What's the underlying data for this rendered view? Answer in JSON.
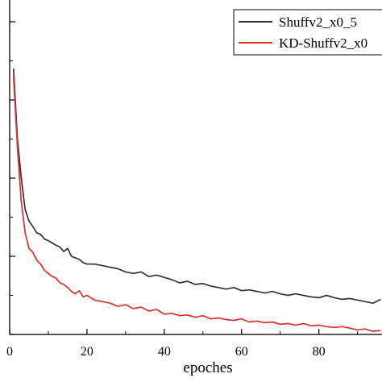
{
  "chart_data": {
    "type": "line",
    "xlabel": "epoches",
    "ylabel": "",
    "xlim": [
      0,
      96
    ],
    "ylim": [
      0,
      4
    ],
    "x_ticks": [
      0,
      20,
      40,
      60,
      80
    ],
    "y_ticks": [
      0,
      1,
      2,
      3,
      4
    ],
    "x_tick_labels": [
      "0",
      "20",
      "40",
      "60",
      "80"
    ],
    "legend_position": "top-right",
    "grid": false,
    "series": [
      {
        "name": "Shuffv2_x0_5",
        "color": "#333333",
        "x": [
          1,
          2,
          3,
          4,
          5,
          6,
          7,
          8,
          9,
          10,
          11,
          12,
          13,
          14,
          15,
          16,
          17,
          18,
          19,
          20,
          22,
          24,
          26,
          28,
          30,
          32,
          34,
          36,
          38,
          40,
          42,
          44,
          46,
          48,
          50,
          52,
          54,
          56,
          58,
          60,
          62,
          64,
          66,
          68,
          70,
          72,
          74,
          76,
          78,
          80,
          82,
          84,
          86,
          88,
          90,
          92,
          94,
          96
        ],
        "y": [
          3.4,
          2.5,
          2.0,
          1.6,
          1.45,
          1.38,
          1.3,
          1.28,
          1.22,
          1.2,
          1.17,
          1.14,
          1.12,
          1.06,
          1.1,
          1.0,
          0.98,
          0.96,
          0.92,
          0.9,
          0.9,
          0.88,
          0.86,
          0.84,
          0.8,
          0.78,
          0.8,
          0.74,
          0.76,
          0.73,
          0.7,
          0.66,
          0.68,
          0.64,
          0.65,
          0.62,
          0.6,
          0.58,
          0.6,
          0.56,
          0.57,
          0.55,
          0.53,
          0.55,
          0.52,
          0.5,
          0.52,
          0.5,
          0.48,
          0.47,
          0.5,
          0.47,
          0.45,
          0.46,
          0.44,
          0.42,
          0.4,
          0.45
        ]
      },
      {
        "name": "KD-Shuffv2_x0",
        "color": "#d9302c",
        "x": [
          1,
          2,
          3,
          4,
          5,
          6,
          7,
          8,
          9,
          10,
          11,
          12,
          13,
          14,
          15,
          16,
          17,
          18,
          19,
          20,
          22,
          24,
          26,
          28,
          30,
          32,
          34,
          36,
          38,
          40,
          42,
          44,
          46,
          48,
          50,
          52,
          54,
          56,
          58,
          60,
          62,
          64,
          66,
          68,
          70,
          72,
          74,
          76,
          78,
          80,
          82,
          84,
          86,
          88,
          90,
          92,
          94,
          96
        ],
        "y": [
          3.3,
          2.4,
          1.7,
          1.3,
          1.1,
          1.05,
          0.95,
          0.9,
          0.82,
          0.78,
          0.74,
          0.72,
          0.66,
          0.64,
          0.6,
          0.55,
          0.52,
          0.56,
          0.48,
          0.5,
          0.44,
          0.42,
          0.4,
          0.36,
          0.38,
          0.33,
          0.35,
          0.3,
          0.32,
          0.26,
          0.27,
          0.24,
          0.25,
          0.22,
          0.24,
          0.2,
          0.21,
          0.19,
          0.18,
          0.2,
          0.16,
          0.17,
          0.15,
          0.16,
          0.13,
          0.14,
          0.12,
          0.14,
          0.11,
          0.12,
          0.1,
          0.09,
          0.1,
          0.08,
          0.06,
          0.07,
          0.04,
          0.05
        ]
      }
    ]
  }
}
